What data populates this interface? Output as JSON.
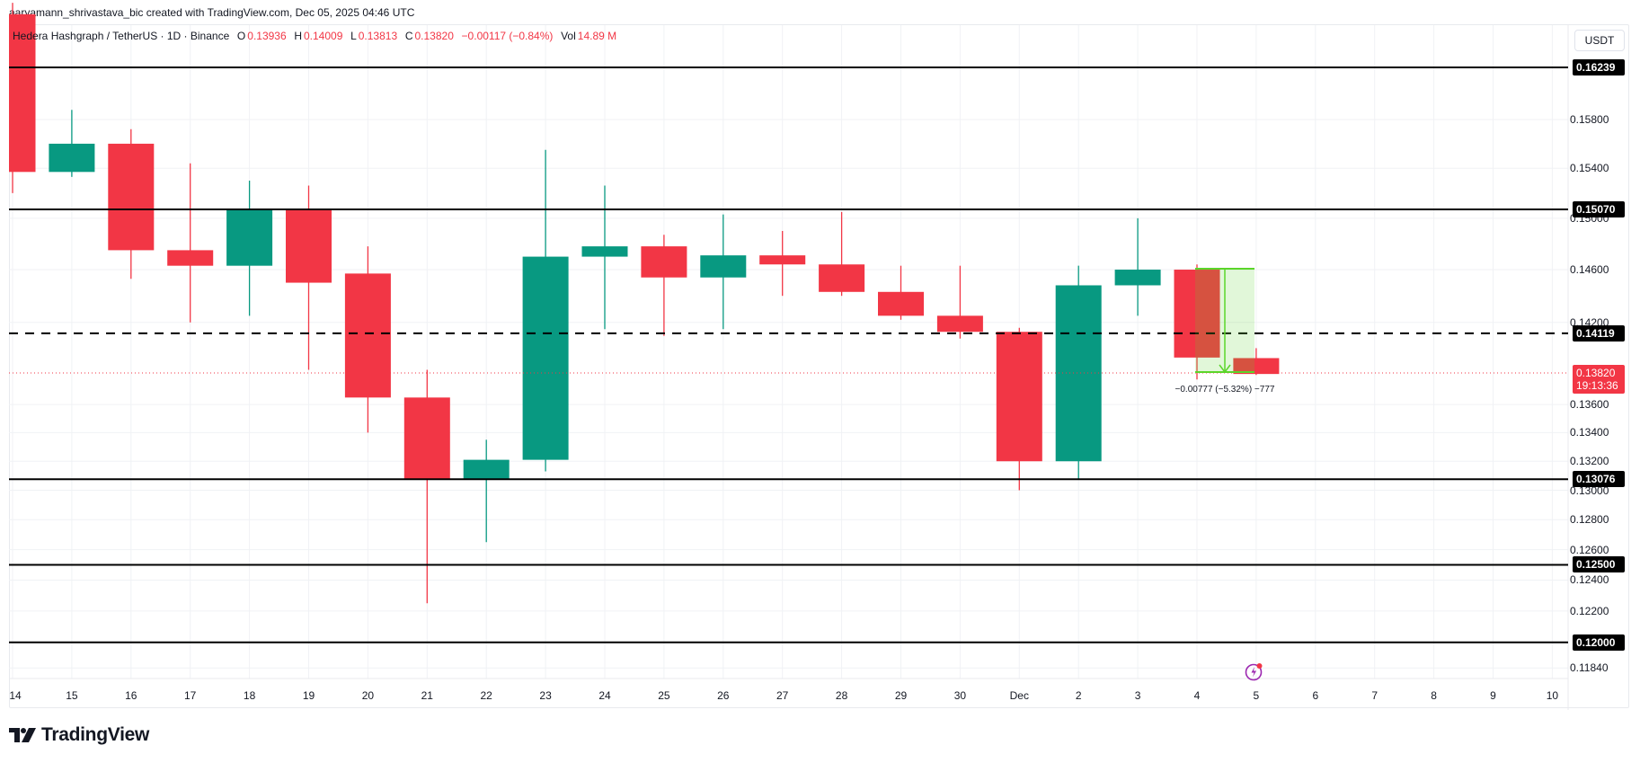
{
  "header": {
    "credit": "aaryamann_shrivastava_bic created with TradingView.com, Dec 05, 2025 04:46 UTC"
  },
  "legend": {
    "symbol": "Hedera Hashgraph / TetherUS · 1D · Binance",
    "o_label": "O",
    "o": "0.13936",
    "h_label": "H",
    "h": "0.14009",
    "l_label": "L",
    "l": "0.13813",
    "c_label": "C",
    "c": "0.13820",
    "change": "−0.00117 (−0.84%)",
    "vol_label": "Vol",
    "vol": "14.89 M"
  },
  "currency": "USDT",
  "price_axis": [
    "0.15800",
    "0.15400",
    "0.15000",
    "0.14600",
    "0.14200",
    "0.13600",
    "0.13400",
    "0.13200",
    "0.13000",
    "0.12800",
    "0.12600",
    "0.12400",
    "0.12200",
    "0.11840"
  ],
  "level_tags": [
    "0.16239",
    "0.15070",
    "0.14119",
    "0.13076",
    "0.12500",
    "0.12000"
  ],
  "last_price": {
    "value": "0.13820",
    "countdown": "19:13:36"
  },
  "measure": {
    "label": "−0.00777 (−5.32%) −777"
  },
  "x_axis": [
    "14",
    "15",
    "16",
    "17",
    "18",
    "19",
    "20",
    "21",
    "22",
    "23",
    "24",
    "25",
    "26",
    "27",
    "28",
    "29",
    "30",
    "Dec",
    "2",
    "3",
    "4",
    "5",
    "6",
    "7",
    "8",
    "9",
    "10"
  ],
  "brand": {
    "name": "TradingView"
  },
  "colors": {
    "up": "#089981",
    "down": "#f23645",
    "level": "#000000",
    "measure": "#5bd52a"
  },
  "chart_data": {
    "type": "candlestick",
    "title": "Hedera Hashgraph / TetherUS · 1D · Binance",
    "ylabel": "USDT",
    "scale": "log",
    "ylim": [
      0.117,
      0.168
    ],
    "categories": [
      "Nov 14",
      "Nov 15",
      "Nov 16",
      "Nov 17",
      "Nov 18",
      "Nov 19",
      "Nov 20",
      "Nov 21",
      "Nov 22",
      "Nov 23",
      "Nov 24",
      "Nov 25",
      "Nov 26",
      "Nov 27",
      "Nov 28",
      "Nov 29",
      "Nov 30",
      "Dec 1",
      "Dec 2",
      "Dec 3",
      "Dec 4",
      "Dec 5"
    ],
    "ohlc": [
      {
        "o": 0.167,
        "h": 0.168,
        "l": 0.152,
        "c": 0.1537
      },
      {
        "o": 0.1537,
        "h": 0.1588,
        "l": 0.1533,
        "c": 0.156
      },
      {
        "o": 0.156,
        "h": 0.1572,
        "l": 0.1453,
        "c": 0.1475
      },
      {
        "o": 0.1475,
        "h": 0.1544,
        "l": 0.142,
        "c": 0.1463
      },
      {
        "o": 0.1463,
        "h": 0.153,
        "l": 0.1425,
        "c": 0.1507
      },
      {
        "o": 0.1507,
        "h": 0.1526,
        "l": 0.1385,
        "c": 0.145
      },
      {
        "o": 0.1457,
        "h": 0.1478,
        "l": 0.134,
        "c": 0.1365
      },
      {
        "o": 0.1365,
        "h": 0.1385,
        "l": 0.1225,
        "c": 0.1308
      },
      {
        "o": 0.1308,
        "h": 0.1335,
        "l": 0.1265,
        "c": 0.1321
      },
      {
        "o": 0.1321,
        "h": 0.1555,
        "l": 0.1313,
        "c": 0.147
      },
      {
        "o": 0.147,
        "h": 0.1526,
        "l": 0.1415,
        "c": 0.1478
      },
      {
        "o": 0.1478,
        "h": 0.1487,
        "l": 0.141,
        "c": 0.1454
      },
      {
        "o": 0.1454,
        "h": 0.1503,
        "l": 0.1415,
        "c": 0.1471
      },
      {
        "o": 0.1471,
        "h": 0.149,
        "l": 0.144,
        "c": 0.1464
      },
      {
        "o": 0.1464,
        "h": 0.1505,
        "l": 0.144,
        "c": 0.1443
      },
      {
        "o": 0.1443,
        "h": 0.1463,
        "l": 0.1422,
        "c": 0.1425
      },
      {
        "o": 0.1425,
        "h": 0.1463,
        "l": 0.1408,
        "c": 0.1413
      },
      {
        "o": 0.1413,
        "h": 0.1416,
        "l": 0.13,
        "c": 0.132
      },
      {
        "o": 0.132,
        "h": 0.1463,
        "l": 0.1308,
        "c": 0.1448
      },
      {
        "o": 0.1448,
        "h": 0.15,
        "l": 0.1425,
        "c": 0.146
      },
      {
        "o": 0.146,
        "h": 0.1464,
        "l": 0.1378,
        "c": 0.1394
      },
      {
        "o": 0.13936,
        "h": 0.14009,
        "l": 0.13813,
        "c": 0.1382
      }
    ],
    "horizontal_levels": [
      0.16239,
      0.1507,
      0.14119,
      0.13076,
      0.125,
      0.12
    ],
    "dashed_level": 0.14119,
    "annotations": [
      "−0.00777 (−5.32%) −777"
    ],
    "grid": true
  }
}
